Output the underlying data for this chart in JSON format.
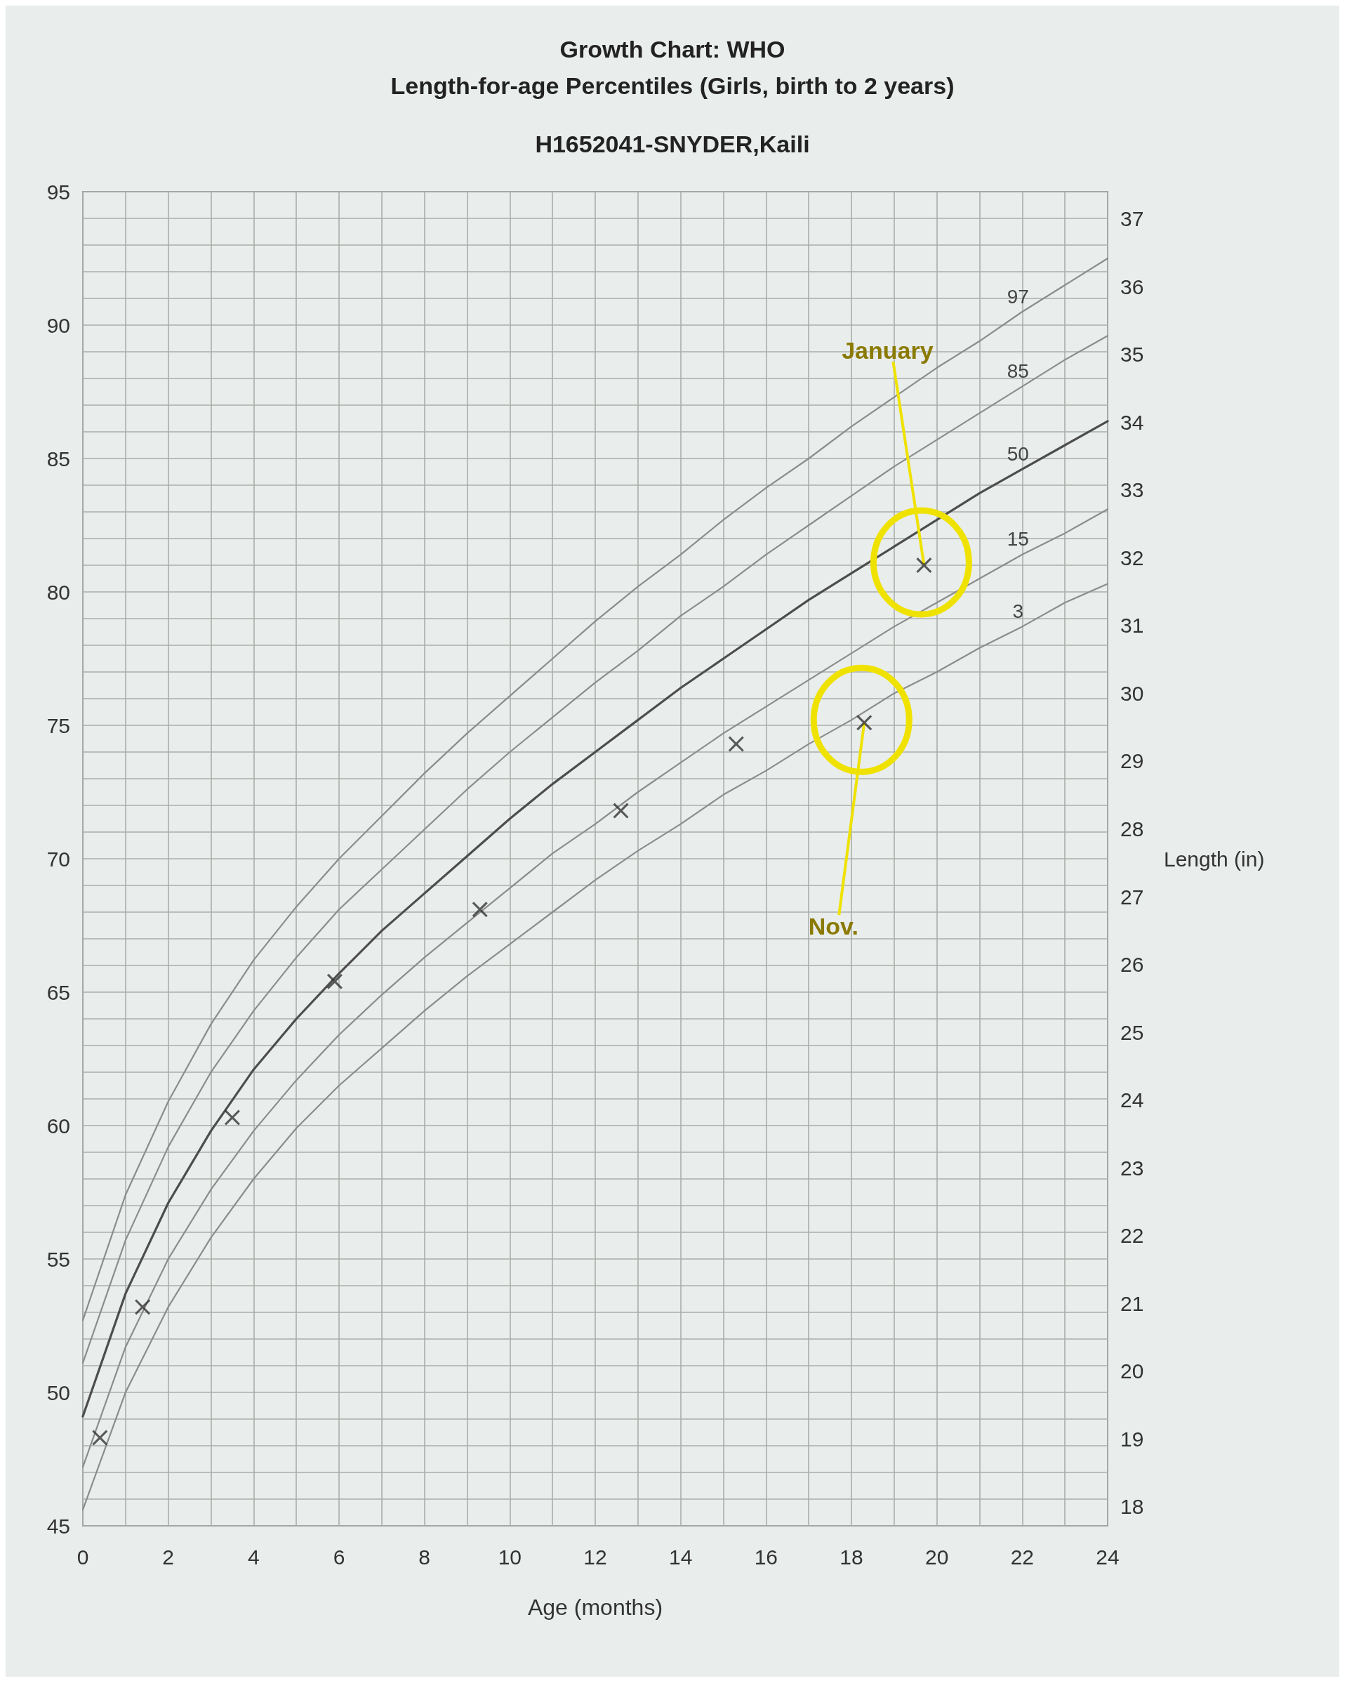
{
  "chart_data": {
    "type": "line",
    "title": "Growth Chart: WHO",
    "subtitle": "Length-for-age Percentiles (Girls, birth to 2 years)",
    "xlabel": "Age (months)",
    "y2label": "Length (in)",
    "annotations": [
      "H1652041-SNYDER,Kaili",
      {
        "text": "January",
        "x": 19.7,
        "y": 81.0
      },
      {
        "text": "Nov.",
        "x": 18.3,
        "y": 75.1
      }
    ],
    "x": [
      0,
      1,
      2,
      3,
      4,
      5,
      6,
      7,
      8,
      9,
      10,
      11,
      12,
      13,
      14,
      15,
      16,
      17,
      18,
      19,
      20,
      21,
      22,
      23,
      24
    ],
    "series": [
      {
        "name": "3",
        "color": "#8c8c8c",
        "values": [
          45.6,
          50.0,
          53.2,
          55.8,
          58.0,
          59.9,
          61.5,
          62.9,
          64.3,
          65.6,
          66.8,
          68.0,
          69.2,
          70.3,
          71.3,
          72.4,
          73.3,
          74.3,
          75.2,
          76.2,
          77.0,
          77.9,
          78.7,
          79.6,
          80.3
        ]
      },
      {
        "name": "15",
        "color": "#8c8c8c",
        "values": [
          47.2,
          51.7,
          55.0,
          57.6,
          59.8,
          61.7,
          63.4,
          64.9,
          66.3,
          67.6,
          68.9,
          70.2,
          71.3,
          72.5,
          73.6,
          74.7,
          75.7,
          76.7,
          77.7,
          78.7,
          79.6,
          80.5,
          81.4,
          82.2,
          83.1
        ]
      },
      {
        "name": "50",
        "color": "#4d4d4d",
        "values": [
          49.1,
          53.7,
          57.1,
          59.8,
          62.1,
          64.0,
          65.7,
          67.3,
          68.7,
          70.1,
          71.5,
          72.8,
          74.0,
          75.2,
          76.4,
          77.5,
          78.6,
          79.7,
          80.7,
          81.7,
          82.7,
          83.7,
          84.6,
          85.5,
          86.4
        ]
      },
      {
        "name": "85",
        "color": "#8c8c8c",
        "values": [
          51.1,
          55.7,
          59.2,
          62.0,
          64.3,
          66.3,
          68.1,
          69.6,
          71.1,
          72.6,
          74.0,
          75.3,
          76.6,
          77.8,
          79.1,
          80.2,
          81.4,
          82.5,
          83.6,
          84.7,
          85.7,
          86.7,
          87.7,
          88.7,
          89.6
        ]
      },
      {
        "name": "97",
        "color": "#8c8c8c",
        "values": [
          52.7,
          57.4,
          60.9,
          63.8,
          66.2,
          68.2,
          70.0,
          71.6,
          73.2,
          74.7,
          76.1,
          77.5,
          78.9,
          80.2,
          81.4,
          82.7,
          83.9,
          85.0,
          86.2,
          87.3,
          88.4,
          89.4,
          90.5,
          91.5,
          92.5
        ]
      },
      {
        "type": "scatter",
        "color": "#333333",
        "marker": "cross",
        "x": [
          0.4,
          1.4,
          3.5,
          5.9,
          9.3,
          12.6,
          15.3,
          18.3,
          19.7
        ],
        "values": [
          48.3,
          53.2,
          60.3,
          65.4,
          68.1,
          71.8,
          74.3,
          75.1,
          81.0
        ]
      }
    ],
    "xlim": [
      0,
      24
    ],
    "xticks": [
      0,
      {
        "value": 1,
        "label": null
      },
      2,
      {
        "value": 3,
        "label": null
      },
      4,
      {
        "value": 5,
        "label": null
      },
      6,
      {
        "value": 7,
        "label": null
      },
      8,
      {
        "value": 9,
        "label": null
      },
      10,
      {
        "value": 11,
        "label": null
      },
      12,
      {
        "value": 13,
        "label": null
      },
      14,
      {
        "value": 15,
        "label": null
      },
      16,
      {
        "value": 17,
        "label": null
      },
      18,
      {
        "value": 19,
        "label": null
      },
      20,
      {
        "value": 21,
        "label": null
      },
      22,
      {
        "value": 23,
        "label": null
      },
      24
    ],
    "ylim": [
      45,
      95
    ],
    "yticks": [
      45,
      {
        "value": 46,
        "label": null
      },
      {
        "value": 47,
        "label": null
      },
      {
        "value": 48,
        "label": null
      },
      {
        "value": 49,
        "label": null
      },
      50,
      {
        "value": 51,
        "label": null
      },
      {
        "value": 52,
        "label": null
      },
      {
        "value": 53,
        "label": null
      },
      {
        "value": 54,
        "label": null
      },
      55,
      {
        "value": 56,
        "label": null
      },
      {
        "value": 57,
        "label": null
      },
      {
        "value": 58,
        "label": null
      },
      {
        "value": 59,
        "label": null
      },
      60,
      {
        "value": 61,
        "label": null
      },
      {
        "value": 62,
        "label": null
      },
      {
        "value": 63,
        "label": null
      },
      {
        "value": 64,
        "label": null
      },
      65,
      {
        "value": 66,
        "label": null
      },
      {
        "value": 67,
        "label": null
      },
      {
        "value": 68,
        "label": null
      },
      {
        "value": 69,
        "label": null
      },
      70,
      {
        "value": 71,
        "label": null
      },
      {
        "value": 72,
        "label": null
      },
      {
        "value": 73,
        "label": null
      },
      {
        "value": 74,
        "label": null
      },
      75,
      {
        "value": 76,
        "label": null
      },
      {
        "value": 77,
        "label": null
      },
      {
        "value": 78,
        "label": null
      },
      {
        "value": 79,
        "label": null
      },
      80,
      {
        "value": 81,
        "label": null
      },
      {
        "value": 82,
        "label": null
      },
      {
        "value": 83,
        "label": null
      },
      {
        "value": 84,
        "label": null
      },
      85,
      {
        "value": 86,
        "label": null
      },
      {
        "value": 87,
        "label": null
      },
      {
        "value": 88,
        "label": null
      },
      {
        "value": 89,
        "label": null
      },
      90,
      {
        "value": 91,
        "label": null
      },
      {
        "value": 92,
        "label": null
      },
      {
        "value": 93,
        "label": null
      },
      {
        "value": 94,
        "label": null
      },
      95
    ],
    "y2lim": [
      17.72,
      37.4
    ],
    "y2ticks": [
      18,
      19,
      20,
      21,
      22,
      23,
      24,
      25,
      26,
      27,
      28,
      29,
      30,
      31,
      32,
      33,
      34,
      35,
      36,
      37
    ],
    "grid": true,
    "legend": false,
    "marker": "none",
    "line_style": "solid"
  }
}
